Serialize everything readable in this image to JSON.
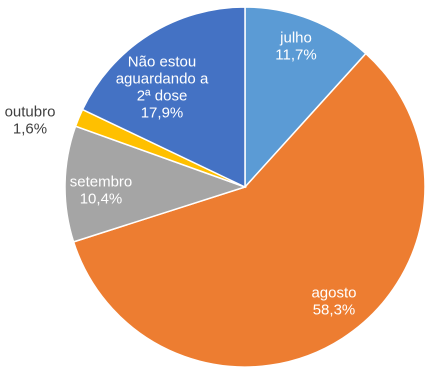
{
  "chart_data": {
    "type": "pie",
    "title": "",
    "start_angle_deg": 0,
    "direction": "clockwise",
    "slices": [
      {
        "label_lines": [
          "julho",
          "11,7%"
        ],
        "category": "julho",
        "value": 11.7,
        "value_label": "11,7%",
        "color": "#5B9BD5",
        "label_color": "#ffffff",
        "label_position": "inside"
      },
      {
        "label_lines": [
          "agosto",
          "58,3%"
        ],
        "category": "agosto",
        "value": 58.3,
        "value_label": "58,3%",
        "color": "#ED7D31",
        "label_color": "#ffffff",
        "label_position": "inside"
      },
      {
        "label_lines": [
          "setembro",
          "10,4%"
        ],
        "category": "setembro",
        "value": 10.4,
        "value_label": "10,4%",
        "color": "#A5A5A5",
        "label_color": "#ffffff",
        "label_position": "inside"
      },
      {
        "label_lines": [
          "outubro",
          "1,6%"
        ],
        "category": "outubro",
        "value": 1.6,
        "value_label": "1,6%",
        "color": "#FFC000",
        "label_color": "#404040",
        "label_position": "outside"
      },
      {
        "label_lines": [
          "Não estou",
          "aguardando a",
          "2ª dose",
          "17,9%"
        ],
        "category": "Não estou aguardando a 2ª dose",
        "value": 17.9,
        "value_label": "17,9%",
        "color": "#4472C4",
        "label_color": "#ffffff",
        "label_position": "inside"
      }
    ]
  }
}
